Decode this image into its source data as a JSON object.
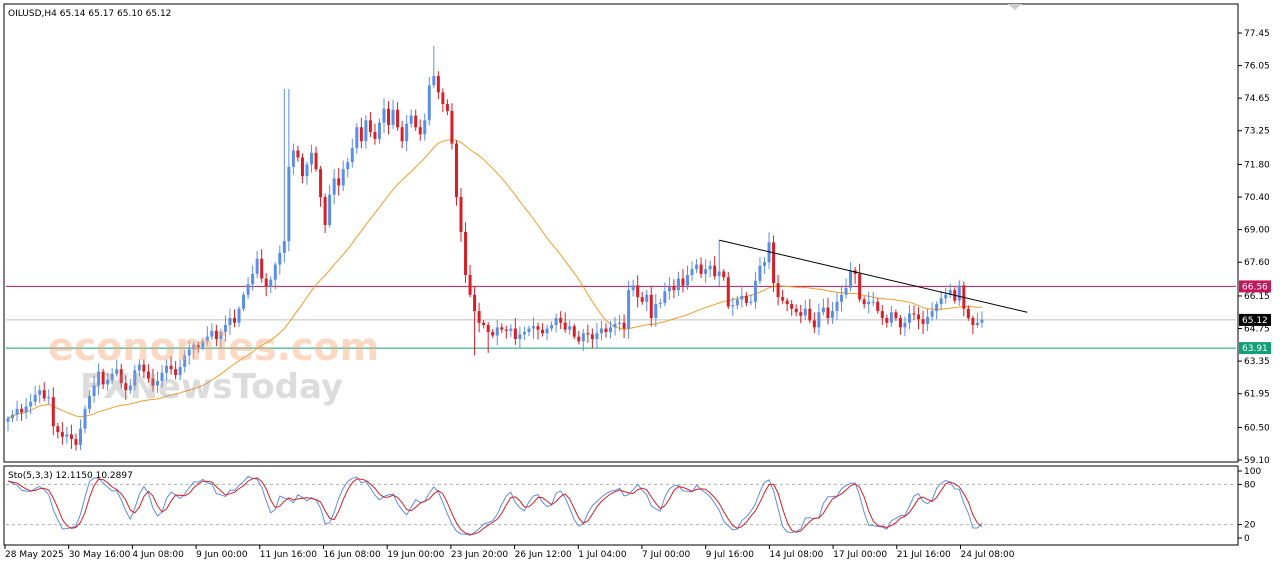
{
  "chart_data": {
    "type": "candlestick",
    "symbol_header": "OILUSD,H4  65.14 65.17 65.10 65.12",
    "oscillator_header": "Sto(5,3,3) 12.1150 10.2897",
    "watermark_1": "economies.com",
    "watermark_2": "FXNewsToday",
    "price_axis": {
      "ticks": [
        "77.45",
        "76.05",
        "74.65",
        "73.25",
        "71.80",
        "70.40",
        "69.00",
        "67.60",
        "66.15",
        "64.75",
        "63.35",
        "61.95",
        "60.50",
        "59.10"
      ],
      "ylim": [
        59.1,
        77.45
      ]
    },
    "oscillator_axis": {
      "ticks": [
        "100",
        "80",
        "20",
        "0"
      ],
      "levels": [
        80,
        20
      ]
    },
    "time_axis": [
      "28 May 2025",
      "30 May 16:00",
      "4 Jun 08:00",
      "9 Jun 00:00",
      "11 Jun 16:00",
      "16 Jun 08:00",
      "19 Jun 00:00",
      "23 Jun 20:00",
      "26 Jun 12:00",
      "1 Jul 04:00",
      "7 Jul 00:00",
      "9 Jul 16:00",
      "14 Jul 08:00",
      "17 Jul 00:00",
      "21 Jul 16:00",
      "24 Jul 08:00"
    ],
    "levels": [
      {
        "label": "66.56",
        "value": 66.56,
        "color": "#c2185b"
      },
      {
        "label": "65.12",
        "value": 65.12,
        "color": "#000000"
      },
      {
        "label": "63.91",
        "value": 63.91,
        "color": "#13a076"
      }
    ],
    "trendline": {
      "from": {
        "bar": 157,
        "price": 68.55
      },
      "to": {
        "bar": 225,
        "price": 65.45
      },
      "color": "#000000"
    },
    "colors": {
      "up": "#5b8ee6",
      "down": "#d61f26",
      "ma": "#f39c2a",
      "stoch_main": "#5b8ee6",
      "stoch_signal": "#d61f26",
      "grid": "#c8c8c8"
    },
    "closes": [
      60.9,
      61.05,
      61.3,
      61.15,
      61.4,
      61.6,
      61.9,
      62.1,
      61.75,
      61.8,
      60.55,
      60.3,
      60.1,
      60.2,
      60.0,
      59.75,
      60.45,
      61.3,
      61.85,
      62.3,
      62.9,
      62.35,
      62.55,
      62.8,
      63.0,
      62.4,
      62.1,
      62.3,
      62.95,
      63.2,
      62.9,
      62.6,
      62.3,
      62.5,
      62.85,
      63.15,
      63.0,
      62.75,
      63.1,
      63.6,
      63.85,
      64.05,
      63.95,
      64.2,
      64.4,
      64.65,
      64.3,
      64.6,
      64.9,
      65.2,
      65.0,
      65.6,
      66.2,
      66.65,
      67.1,
      67.75,
      66.9,
      66.55,
      66.85,
      67.5,
      68.0,
      68.5,
      71.7,
      72.4,
      72.1,
      71.3,
      71.8,
      72.3,
      71.6,
      70.4,
      69.2,
      70.5,
      71.2,
      70.9,
      71.6,
      71.9,
      72.5,
      73.4,
      72.8,
      73.7,
      73.2,
      72.9,
      73.6,
      74.2,
      73.5,
      74.15,
      73.4,
      72.8,
      73.55,
      73.9,
      73.4,
      73.1,
      73.7,
      75.2,
      75.6,
      74.9,
      74.4,
      74.1,
      72.7,
      70.4,
      68.9,
      67.05,
      66.2,
      65.5,
      65.0,
      64.9,
      64.6,
      64.45,
      64.8,
      64.7,
      64.65,
      64.75,
      64.3,
      64.5,
      64.6,
      64.75,
      64.85,
      64.7,
      64.55,
      64.75,
      64.9,
      65.2,
      65.0,
      64.7,
      64.85,
      64.4,
      64.2,
      64.55,
      64.5,
      64.3,
      64.55,
      64.75,
      64.6,
      64.8,
      64.95,
      65.0,
      64.75,
      66.4,
      66.6,
      66.1,
      65.9,
      66.2,
      65.2,
      65.8,
      65.85,
      66.35,
      66.55,
      66.4,
      66.9,
      66.6,
      67.05,
      67.3,
      67.5,
      67.1,
      67.3,
      67.45,
      67.0,
      67.2,
      66.95,
      65.7,
      65.75,
      66.0,
      66.15,
      65.85,
      65.9,
      66.8,
      67.45,
      67.6,
      68.45,
      66.7,
      66.1,
      65.95,
      65.8,
      65.6,
      65.45,
      65.3,
      65.6,
      65.1,
      64.8,
      65.45,
      65.65,
      65.2,
      65.5,
      65.9,
      66.2,
      66.5,
      67.25,
      67.1,
      66.0,
      65.8,
      65.9,
      65.9,
      65.5,
      65.2,
      65.0,
      65.45,
      65.2,
      64.8,
      65.0,
      65.4,
      65.35,
      65.15,
      64.95,
      65.25,
      65.5,
      65.8,
      66.05,
      66.2,
      66.4,
      65.95,
      66.6,
      65.6,
      65.2,
      64.9,
      65.0,
      65.12
    ]
  }
}
